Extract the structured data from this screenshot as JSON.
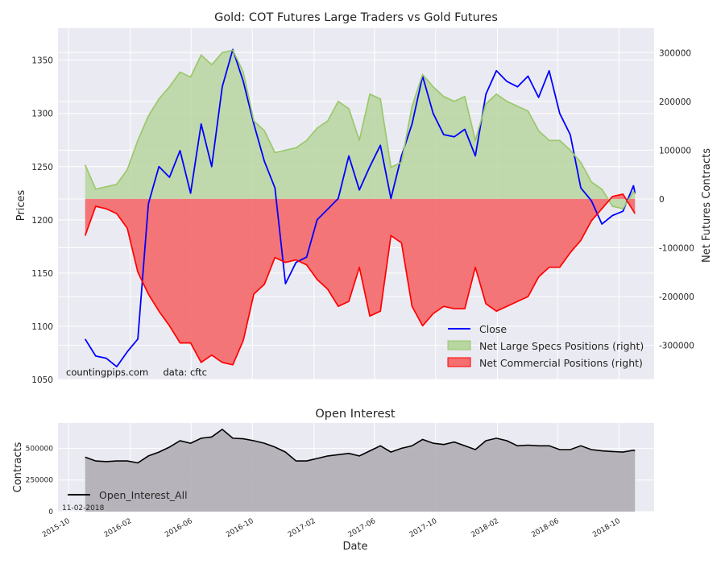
{
  "chart_data": [
    {
      "type": "line",
      "title": "Gold: COT Futures Large Traders vs Gold Futures",
      "ylabel": "Prices",
      "ylabel_right": "Net Futures Contracts",
      "ylim": [
        1050,
        1380
      ],
      "ylim_right": [
        -370000,
        350000
      ],
      "yticks": [
        1050,
        1100,
        1150,
        1200,
        1250,
        1300,
        1350
      ],
      "yticks_right": [
        "-300000",
        "-200000",
        "-100000",
        "0",
        "100000",
        "200000",
        "300000"
      ],
      "yticks_right_values": [
        -300000,
        -200000,
        -100000,
        0,
        100000,
        200000,
        300000
      ],
      "grid": true,
      "legend_position": "bottom-right",
      "annotation": "countingpips.com     data: cftc",
      "x": [
        "2015-11-03",
        "2015-11-24",
        "2015-12-15",
        "2016-01-05",
        "2016-01-26",
        "2016-02-16",
        "2016-03-08",
        "2016-03-29",
        "2016-04-19",
        "2016-05-10",
        "2016-05-31",
        "2016-06-21",
        "2016-07-12",
        "2016-08-02",
        "2016-08-23",
        "2016-09-13",
        "2016-10-04",
        "2016-10-25",
        "2016-11-15",
        "2016-12-06",
        "2016-12-27",
        "2017-01-17",
        "2017-02-07",
        "2017-02-28",
        "2017-03-21",
        "2017-04-11",
        "2017-05-02",
        "2017-05-23",
        "2017-06-13",
        "2017-07-04",
        "2017-07-25",
        "2017-08-15",
        "2017-09-05",
        "2017-09-26",
        "2017-10-17",
        "2017-11-07",
        "2017-11-28",
        "2017-12-19",
        "2018-01-09",
        "2018-01-30",
        "2018-02-20",
        "2018-03-13",
        "2018-04-03",
        "2018-04-24",
        "2018-05-15",
        "2018-06-05",
        "2018-06-26",
        "2018-07-17",
        "2018-08-07",
        "2018-08-28",
        "2018-09-18",
        "2018-10-09",
        "2018-10-30",
        "2018-11-02"
      ],
      "series": [
        {
          "name": "Close",
          "axis": "left",
          "color": "#0000ff",
          "values": [
            1088,
            1072,
            1070,
            1062,
            1076,
            1088,
            1215,
            1250,
            1240,
            1265,
            1225,
            1290,
            1250,
            1325,
            1360,
            1330,
            1290,
            1255,
            1230,
            1140,
            1160,
            1165,
            1200,
            1210,
            1220,
            1260,
            1228,
            1250,
            1270,
            1220,
            1260,
            1290,
            1335,
            1300,
            1280,
            1278,
            1285,
            1260,
            1318,
            1340,
            1330,
            1325,
            1335,
            1315,
            1340,
            1300,
            1280,
            1230,
            1218,
            1196,
            1204,
            1208,
            1232,
            1225
          ]
        },
        {
          "name": "Net Large Specs Positions (right)",
          "axis": "right",
          "color": "#9bc86b",
          "fill": "#b7d6a0",
          "values": [
            70000,
            20000,
            25000,
            30000,
            60000,
            120000,
            170000,
            205000,
            230000,
            260000,
            250000,
            295000,
            275000,
            300000,
            305000,
            260000,
            160000,
            140000,
            95000,
            100000,
            105000,
            120000,
            145000,
            160000,
            200000,
            185000,
            120000,
            215000,
            205000,
            65000,
            75000,
            190000,
            255000,
            230000,
            210000,
            200000,
            210000,
            120000,
            195000,
            215000,
            200000,
            190000,
            180000,
            140000,
            120000,
            120000,
            100000,
            75000,
            35000,
            20000,
            -15000,
            -20000,
            15000,
            10000
          ]
        },
        {
          "name": "Net Commercial Positions (right)",
          "axis": "right",
          "color": "#ff0000",
          "fill": "#f36f70",
          "values": [
            -75000,
            -15000,
            -20000,
            -30000,
            -60000,
            -150000,
            -195000,
            -230000,
            -260000,
            -295000,
            -295000,
            -335000,
            -320000,
            -335000,
            -340000,
            -290000,
            -195000,
            -175000,
            -120000,
            -130000,
            -125000,
            -135000,
            -165000,
            -185000,
            -220000,
            -210000,
            -140000,
            -240000,
            -230000,
            -75000,
            -90000,
            -220000,
            -260000,
            -235000,
            -220000,
            -225000,
            -225000,
            -140000,
            -215000,
            -230000,
            -220000,
            -210000,
            -200000,
            -160000,
            -140000,
            -140000,
            -110000,
            -85000,
            -45000,
            -20000,
            5000,
            10000,
            -25000,
            -30000
          ]
        }
      ]
    },
    {
      "type": "area",
      "title": "Open Interest",
      "xlabel": "Date",
      "ylabel": "Contracts",
      "ylim": [
        0,
        700000
      ],
      "yticks": [
        0,
        250000,
        500000
      ],
      "grid": true,
      "legend_position": "bottom-left",
      "annotation": "11-02-2018",
      "xtick_labels": [
        "2015-10",
        "2016-02",
        "2016-06",
        "2016-10",
        "2017-02",
        "2017-06",
        "2017-10",
        "2018-02",
        "2018-06",
        "2018-10"
      ],
      "xtick_dates": [
        "2015-10-01",
        "2016-02-01",
        "2016-06-01",
        "2016-10-01",
        "2017-02-01",
        "2017-06-01",
        "2017-10-01",
        "2018-02-01",
        "2018-06-01",
        "2018-10-01"
      ],
      "series": [
        {
          "name": "Open_Interest_All",
          "color": "#000000",
          "fill": "#b0aeb4",
          "values": [
            430000,
            400000,
            395000,
            400000,
            400000,
            385000,
            440000,
            470000,
            510000,
            560000,
            540000,
            580000,
            590000,
            650000,
            580000,
            575000,
            560000,
            540000,
            510000,
            470000,
            400000,
            400000,
            420000,
            440000,
            450000,
            460000,
            440000,
            480000,
            520000,
            470000,
            500000,
            520000,
            570000,
            540000,
            530000,
            550000,
            520000,
            490000,
            560000,
            580000,
            560000,
            520000,
            525000,
            520000,
            520000,
            490000,
            490000,
            520000,
            490000,
            480000,
            475000,
            470000,
            485000,
            480000
          ]
        }
      ]
    }
  ]
}
